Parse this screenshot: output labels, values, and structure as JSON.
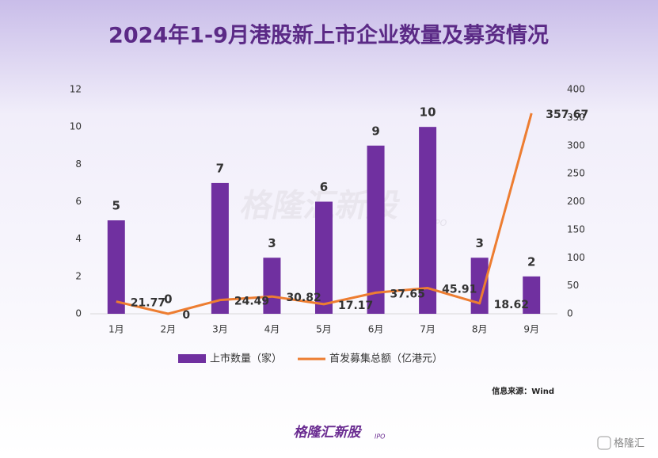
{
  "chart_data": {
    "type": "combo",
    "title": "2024年1-9月港股新上市企业数量及募资情况",
    "categories": [
      "1月",
      "2月",
      "3月",
      "4月",
      "5月",
      "6月",
      "7月",
      "8月",
      "9月"
    ],
    "series": [
      {
        "name": "上市数量（家）",
        "type": "bar",
        "color": "#7030a0",
        "values": [
          5,
          0,
          7,
          3,
          6,
          9,
          10,
          3,
          2
        ]
      },
      {
        "name": "首发募集总额（亿港元）",
        "type": "line",
        "axis": "y2",
        "color": "#ed7d31",
        "values": [
          21.77,
          0,
          24.49,
          30.82,
          17.17,
          37.65,
          45.91,
          18.62,
          357.67
        ]
      }
    ],
    "ylim": [
      0,
      12
    ],
    "yticks": [
      0,
      2,
      4,
      6,
      8,
      10,
      12
    ],
    "y2lim": [
      0,
      400
    ],
    "y2ticks": [
      0,
      50,
      100,
      150,
      200,
      250,
      300,
      350,
      400
    ],
    "grid": false,
    "legend": "bottom",
    "source": "信息来源：Wind",
    "watermark": "格隆汇新股",
    "watermark_sub": "IPO",
    "brand": "格隆汇新股",
    "brand_sub": "IPO",
    "corner_logo": "格隆汇"
  }
}
